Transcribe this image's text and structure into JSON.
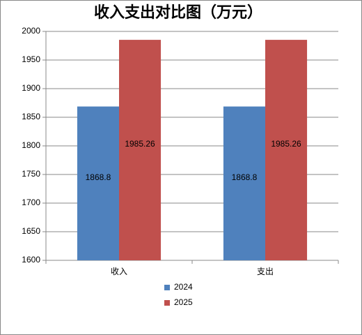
{
  "chart_data": {
    "type": "bar",
    "title": "收入支出对比图（万元）",
    "categories": [
      "收入",
      "支出"
    ],
    "series": [
      {
        "name": "2024",
        "color": "#4f81bd",
        "values": [
          1868.8,
          1868.8
        ]
      },
      {
        "name": "2025",
        "color": "#c0504d",
        "values": [
          1985.26,
          1985.26
        ]
      }
    ],
    "ylim": [
      1600,
      2000
    ],
    "yticks": [
      1600,
      1650,
      1700,
      1750,
      1800,
      1850,
      1900,
      1950,
      2000
    ],
    "grid": true,
    "legend": "bottom",
    "data_labels": true
  }
}
